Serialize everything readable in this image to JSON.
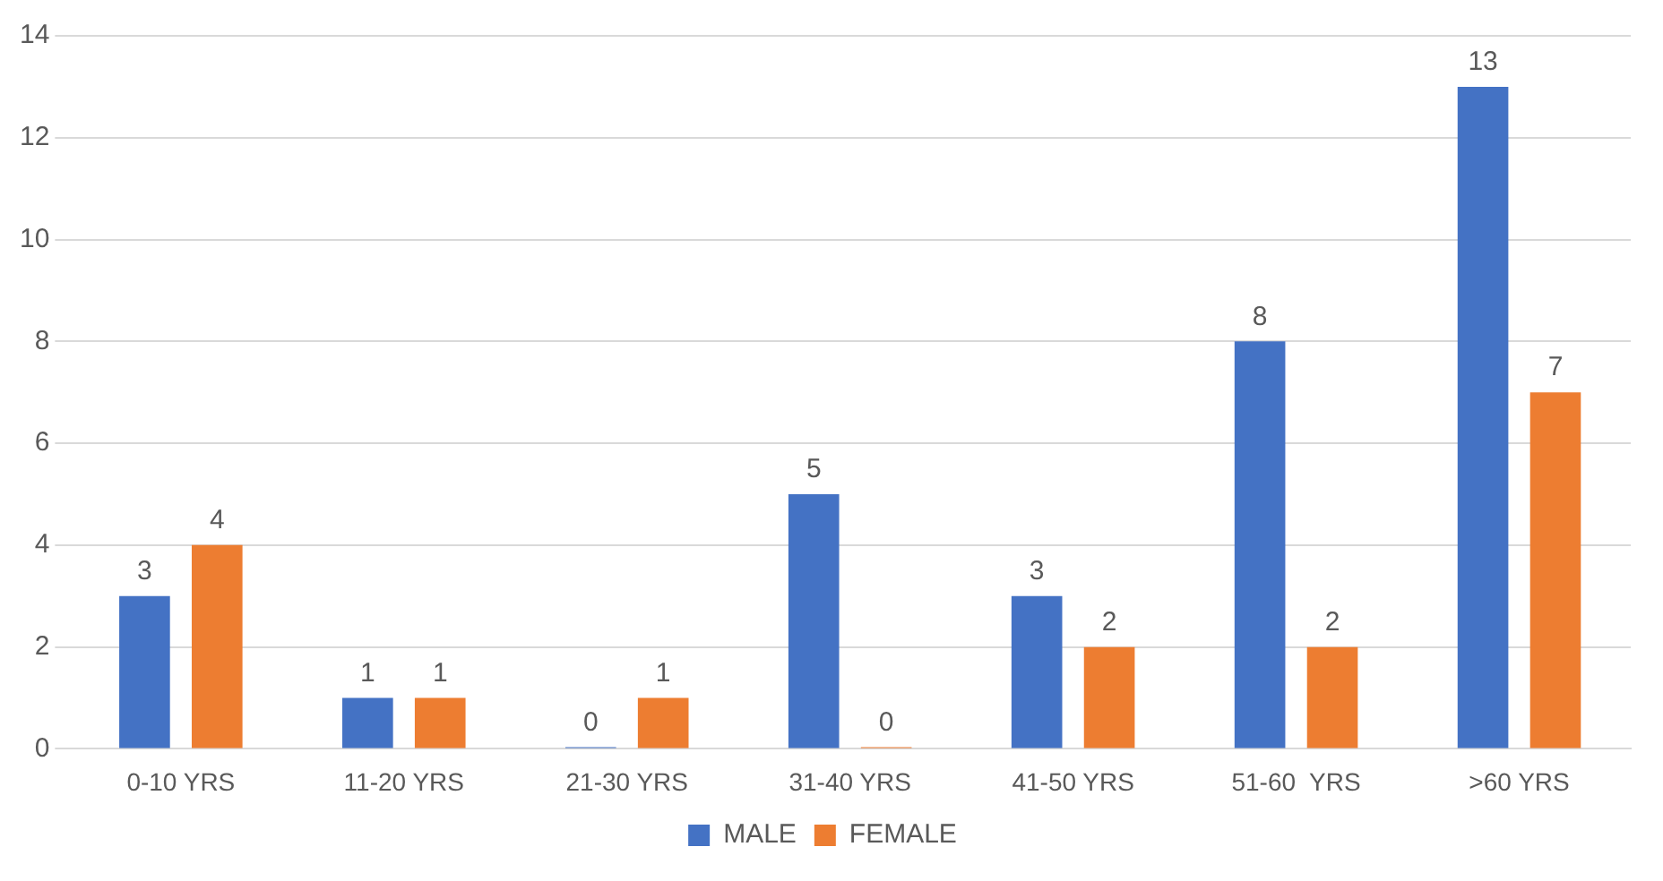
{
  "chart_data": {
    "type": "bar",
    "categories": [
      "0-10 YRS",
      "11-20 YRS",
      "21-30 YRS",
      "31-40 YRS",
      "41-50 YRS",
      "51-60  YRS",
      ">60 YRS"
    ],
    "series": [
      {
        "name": "MALE",
        "color": "#4472c4",
        "values": [
          3,
          1,
          0,
          5,
          3,
          8,
          13
        ]
      },
      {
        "name": "FEMALE",
        "color": "#ed7d31",
        "values": [
          4,
          1,
          1,
          0,
          2,
          2,
          7
        ]
      }
    ],
    "ylim": [
      0,
      14
    ],
    "yticks": [
      0,
      2,
      4,
      6,
      8,
      10,
      12,
      14
    ],
    "grid": "y",
    "legend": "bottom",
    "data_labels": true
  }
}
